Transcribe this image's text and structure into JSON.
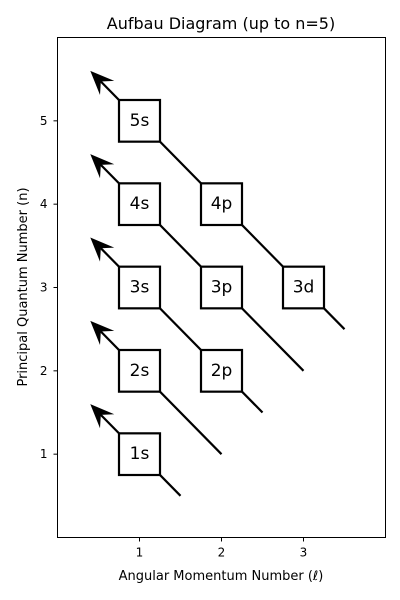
{
  "title": "Aufbau Diagram (up to n=5)",
  "x_axis": {
    "label": "Angular Momentum Number (ℓ)",
    "ticks": [
      1,
      2,
      3
    ],
    "range": [
      0.0,
      4.0
    ]
  },
  "y_axis": {
    "label": "Principal Quantum Number (n)",
    "ticks": [
      1,
      2,
      3,
      4,
      5
    ],
    "range": [
      0.0,
      6.0
    ]
  },
  "orbitals": [
    {
      "label": "1s",
      "l": 1,
      "n": 1
    },
    {
      "label": "2s",
      "l": 1,
      "n": 2
    },
    {
      "label": "2p",
      "l": 2,
      "n": 2
    },
    {
      "label": "3s",
      "l": 1,
      "n": 3
    },
    {
      "label": "3p",
      "l": 2,
      "n": 3
    },
    {
      "label": "3d",
      "l": 3,
      "n": 3
    },
    {
      "label": "4s",
      "l": 1,
      "n": 4
    },
    {
      "label": "4p",
      "l": 2,
      "n": 4
    },
    {
      "label": "5s",
      "l": 1,
      "n": 5
    }
  ],
  "diagonals": [
    {
      "from": [
        1.5,
        0.5
      ],
      "to": [
        0.4,
        1.6
      ]
    },
    {
      "from": [
        2.0,
        1.0
      ],
      "to": [
        0.4,
        2.6
      ]
    },
    {
      "from": [
        2.5,
        1.5
      ],
      "to": [
        0.4,
        3.6
      ]
    },
    {
      "from": [
        3.0,
        2.0
      ],
      "to": [
        0.4,
        4.6
      ]
    },
    {
      "from": [
        3.5,
        2.5
      ],
      "to": [
        0.4,
        5.6
      ]
    }
  ]
}
